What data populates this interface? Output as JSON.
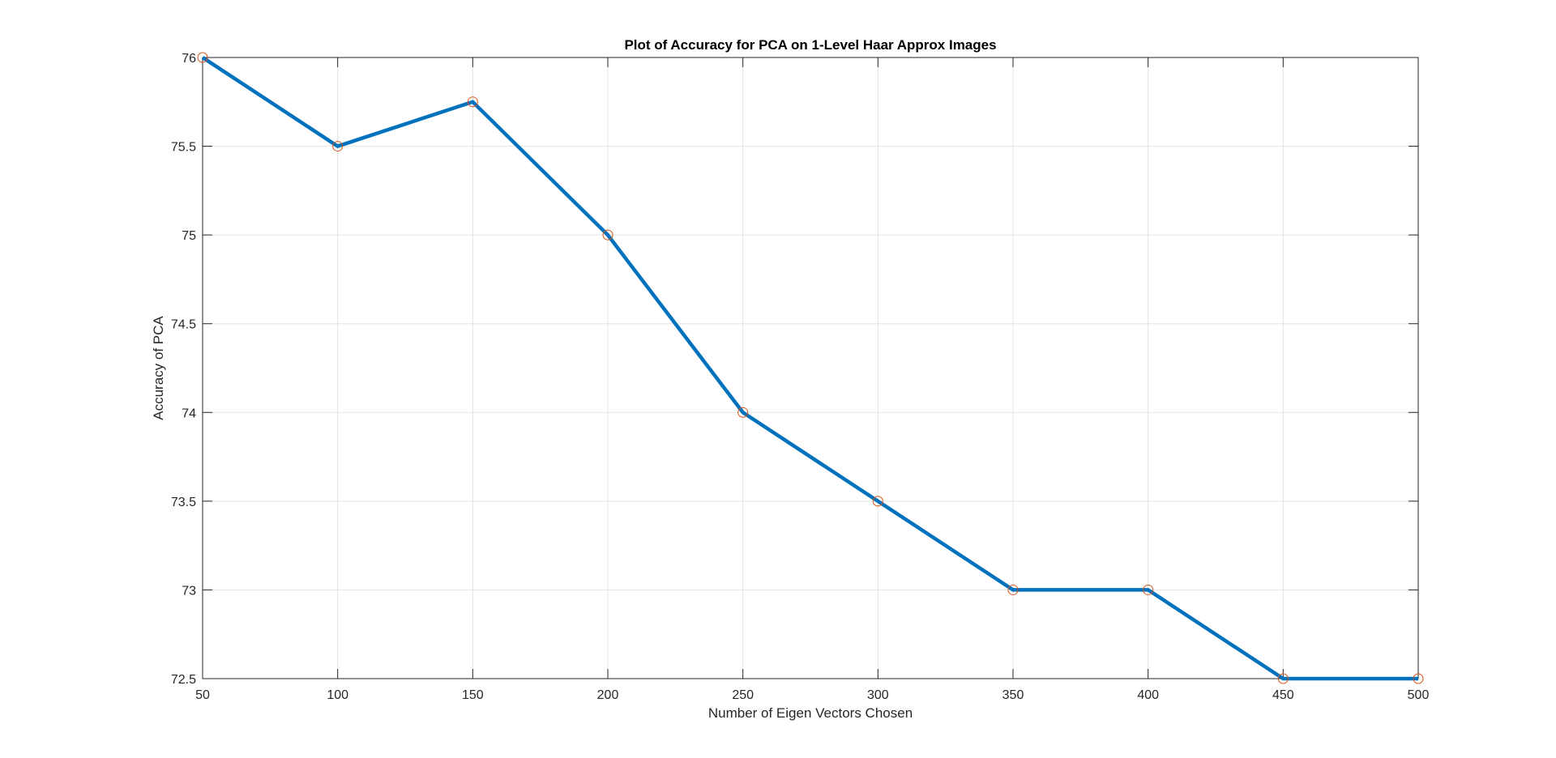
{
  "chart_data": {
    "type": "line",
    "title": "Plot of Accuracy for PCA on 1-Level Haar Approx Images",
    "xlabel": "Number of Eigen Vectors Chosen",
    "ylabel": "Accuracy of PCA",
    "xlim": [
      50,
      500
    ],
    "ylim": [
      72.5,
      76
    ],
    "xticks": [
      50,
      100,
      150,
      200,
      250,
      300,
      350,
      400,
      450,
      500
    ],
    "yticks": [
      72.5,
      73,
      73.5,
      74,
      74.5,
      75,
      75.5,
      76
    ],
    "xtick_labels": [
      "50",
      "100",
      "150",
      "200",
      "250",
      "300",
      "350",
      "400",
      "450",
      "500"
    ],
    "ytick_labels": [
      "72.5",
      "73",
      "73.5",
      "74",
      "74.5",
      "75",
      "75.5",
      "76"
    ],
    "grid": true,
    "x": [
      50,
      100,
      150,
      200,
      250,
      300,
      350,
      400,
      450,
      500
    ],
    "series": [
      {
        "values": [
          76,
          75.5,
          75.75,
          75,
          74,
          73.5,
          73,
          73,
          72.5,
          72.5
        ],
        "line_color": "#0072BD",
        "marker": "circle",
        "marker_color": "#D95319"
      }
    ]
  }
}
